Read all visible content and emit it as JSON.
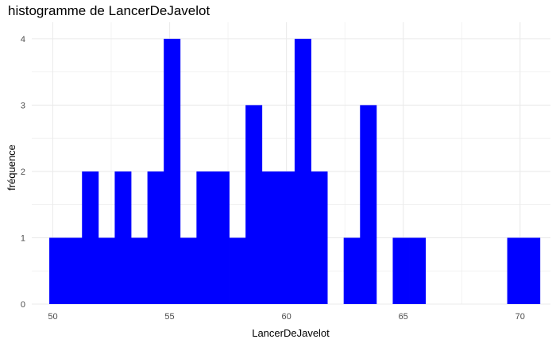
{
  "chart_data": {
    "type": "bar",
    "title": "histogramme de LancerDeJavelot",
    "xlabel": "LancerDeJavelot",
    "ylabel": "fréquence",
    "xlim": [
      49.1,
      71.3
    ],
    "ylim": [
      0,
      4.25
    ],
    "xticks": [
      50,
      55,
      60,
      65,
      70
    ],
    "yticks": [
      0,
      1,
      2,
      3,
      4
    ],
    "bin_width": 0.7,
    "bins": [
      {
        "x_start": 49.85,
        "x_end": 50.55,
        "count": 1
      },
      {
        "x_start": 50.55,
        "x_end": 51.25,
        "count": 1
      },
      {
        "x_start": 51.25,
        "x_end": 51.95,
        "count": 2
      },
      {
        "x_start": 51.95,
        "x_end": 52.65,
        "count": 1
      },
      {
        "x_start": 52.65,
        "x_end": 53.35,
        "count": 2
      },
      {
        "x_start": 53.35,
        "x_end": 54.05,
        "count": 1
      },
      {
        "x_start": 54.05,
        "x_end": 54.75,
        "count": 2
      },
      {
        "x_start": 54.75,
        "x_end": 55.45,
        "count": 4
      },
      {
        "x_start": 55.45,
        "x_end": 56.15,
        "count": 1
      },
      {
        "x_start": 56.15,
        "x_end": 56.85,
        "count": 2
      },
      {
        "x_start": 56.85,
        "x_end": 57.55,
        "count": 2
      },
      {
        "x_start": 57.55,
        "x_end": 58.25,
        "count": 1
      },
      {
        "x_start": 58.25,
        "x_end": 58.95,
        "count": 3
      },
      {
        "x_start": 58.95,
        "x_end": 59.65,
        "count": 2
      },
      {
        "x_start": 59.65,
        "x_end": 60.35,
        "count": 2
      },
      {
        "x_start": 60.35,
        "x_end": 61.05,
        "count": 4
      },
      {
        "x_start": 61.05,
        "x_end": 61.75,
        "count": 2
      },
      {
        "x_start": 61.75,
        "x_end": 62.45,
        "count": 0
      },
      {
        "x_start": 62.45,
        "x_end": 63.15,
        "count": 1
      },
      {
        "x_start": 63.15,
        "x_end": 63.85,
        "count": 3
      },
      {
        "x_start": 63.85,
        "x_end": 64.55,
        "count": 0
      },
      {
        "x_start": 64.55,
        "x_end": 65.25,
        "count": 1
      },
      {
        "x_start": 65.25,
        "x_end": 65.95,
        "count": 1
      },
      {
        "x_start": 65.95,
        "x_end": 66.65,
        "count": 0
      },
      {
        "x_start": 66.65,
        "x_end": 67.35,
        "count": 0
      },
      {
        "x_start": 67.35,
        "x_end": 68.05,
        "count": 0
      },
      {
        "x_start": 68.05,
        "x_end": 68.75,
        "count": 0
      },
      {
        "x_start": 68.75,
        "x_end": 69.45,
        "count": 0
      },
      {
        "x_start": 69.45,
        "x_end": 70.15,
        "count": 1
      },
      {
        "x_start": 70.15,
        "x_end": 70.85,
        "count": 1
      }
    ],
    "bar_color": "#0000ff",
    "grid": true,
    "grid_color": "#ebebeb",
    "legend": "none"
  }
}
